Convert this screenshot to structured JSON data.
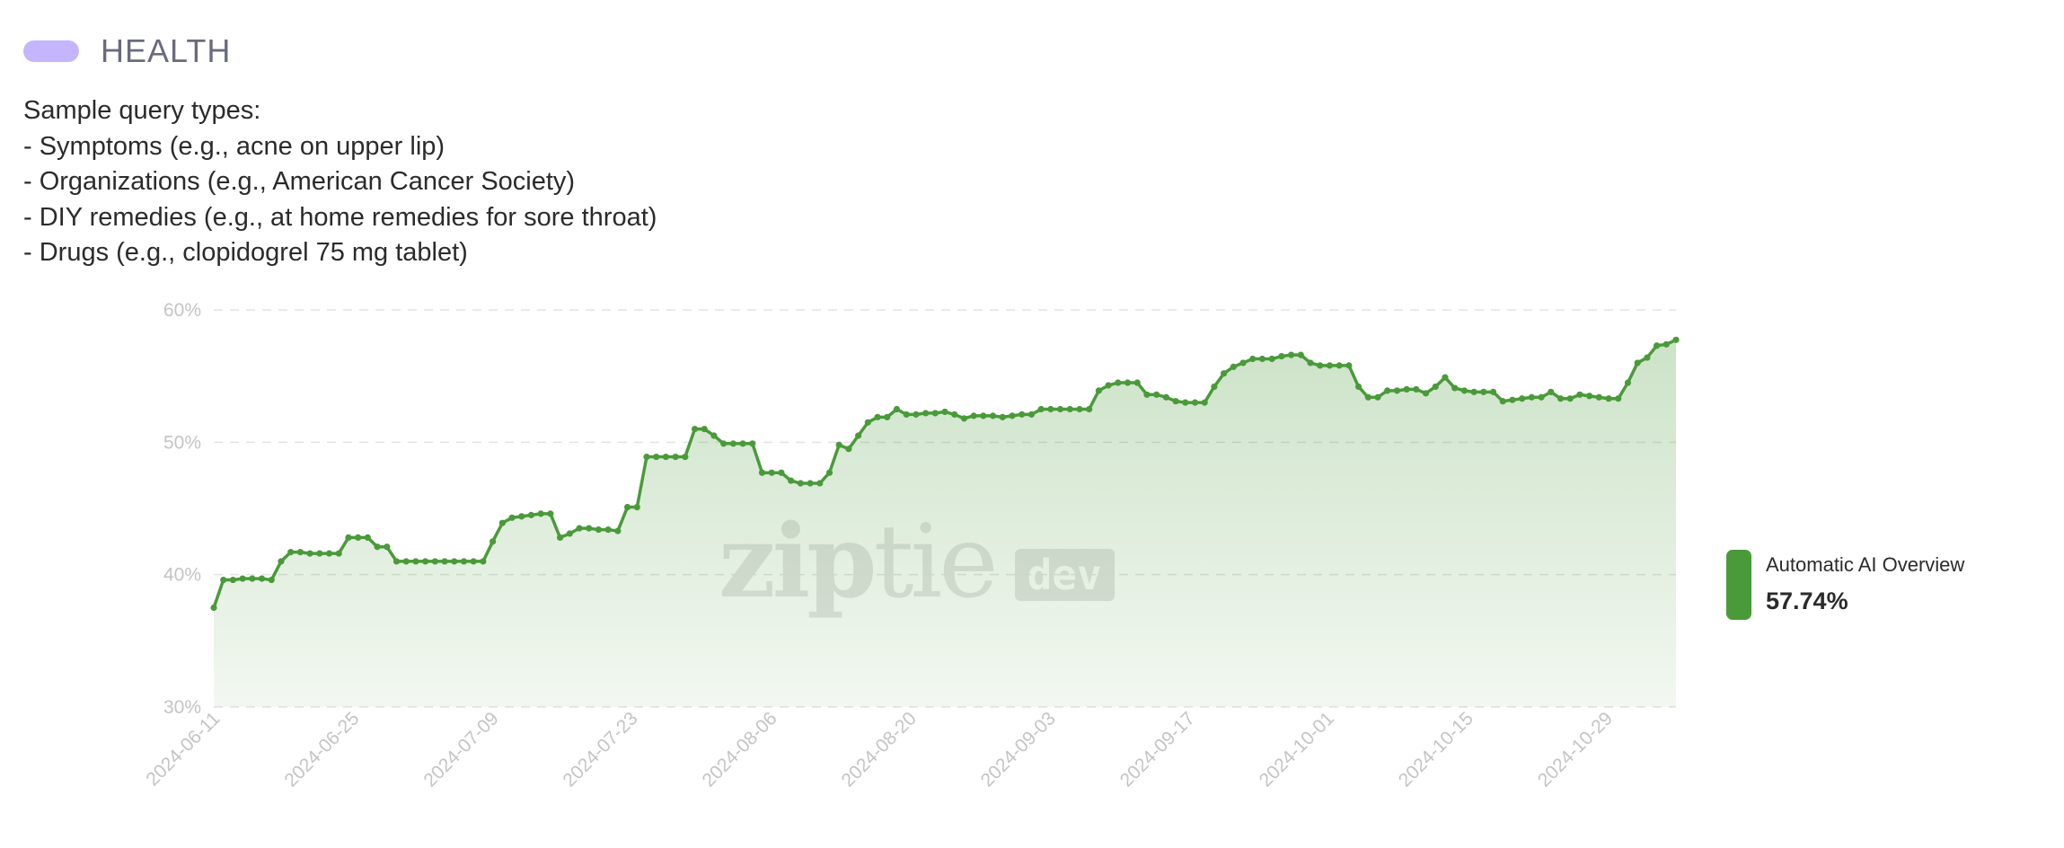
{
  "header": {
    "title": "HEALTH",
    "pill_color": "#c4b5fd"
  },
  "description": {
    "intro": "Sample query types:",
    "lines": [
      "- Symptoms (e.g., acne on upper lip)",
      "- Organizations (e.g., American Cancer Society)",
      "- DIY remedies (e.g., at home remedies for sore throat)",
      "- Drugs (e.g., clopidogrel 75 mg tablet)"
    ]
  },
  "legend": {
    "name": "Automatic AI Overview",
    "value": "57.74%",
    "color": "#4a9a3a"
  },
  "watermark": {
    "word_a": "zip",
    "word_b": "tie",
    "badge": "dev"
  },
  "chart_data": {
    "type": "area",
    "x_start": "2024-06-11",
    "x_end": "2024-11-05",
    "x_ticks": [
      "2024-06-11",
      "2024-06-25",
      "2024-07-09",
      "2024-07-23",
      "2024-08-06",
      "2024-08-20",
      "2024-09-03",
      "2024-09-17",
      "2024-10-01",
      "2024-10-15",
      "2024-10-29"
    ],
    "y_ticks": [
      "30%",
      "40%",
      "50%",
      "60%"
    ],
    "ylim": [
      30,
      60
    ],
    "grid": true,
    "legend_position": "right",
    "series": [
      {
        "name": "Automatic AI Overview",
        "color": "#4a9a3a",
        "values": [
          37.5,
          39.6,
          39.6,
          39.7,
          39.7,
          39.7,
          39.6,
          41.0,
          41.7,
          41.7,
          41.6,
          41.6,
          41.6,
          41.6,
          42.8,
          42.8,
          42.8,
          42.1,
          42.1,
          41.0,
          41.0,
          41.0,
          41.0,
          41.0,
          41.0,
          41.0,
          41.0,
          41.0,
          41.0,
          42.5,
          43.9,
          44.3,
          44.4,
          44.5,
          44.6,
          44.6,
          42.8,
          43.1,
          43.5,
          43.5,
          43.4,
          43.4,
          43.3,
          45.1,
          45.1,
          48.9,
          48.9,
          48.9,
          48.9,
          48.9,
          51.0,
          51.0,
          50.5,
          49.9,
          49.9,
          49.9,
          49.9,
          47.7,
          47.7,
          47.7,
          47.1,
          46.9,
          46.9,
          46.9,
          47.7,
          49.8,
          49.5,
          50.5,
          51.5,
          51.9,
          51.9,
          52.5,
          52.1,
          52.1,
          52.2,
          52.2,
          52.3,
          52.1,
          51.8,
          52.0,
          52.0,
          52.0,
          51.9,
          52.0,
          52.1,
          52.1,
          52.5,
          52.5,
          52.5,
          52.5,
          52.5,
          52.5,
          53.9,
          54.3,
          54.5,
          54.5,
          54.5,
          53.6,
          53.6,
          53.4,
          53.1,
          53.0,
          53.0,
          53.0,
          54.2,
          55.2,
          55.7,
          56.0,
          56.3,
          56.3,
          56.3,
          56.5,
          56.6,
          56.6,
          56.0,
          55.8,
          55.8,
          55.8,
          55.8,
          54.2,
          53.4,
          53.4,
          53.9,
          53.9,
          54.0,
          54.0,
          53.7,
          54.2,
          54.9,
          54.1,
          53.9,
          53.8,
          53.8,
          53.8,
          53.1,
          53.2,
          53.3,
          53.4,
          53.4,
          53.8,
          53.3,
          53.3,
          53.6,
          53.5,
          53.4,
          53.3,
          53.3,
          54.5,
          56.0,
          56.4,
          57.3,
          57.4,
          57.74
        ]
      }
    ]
  }
}
